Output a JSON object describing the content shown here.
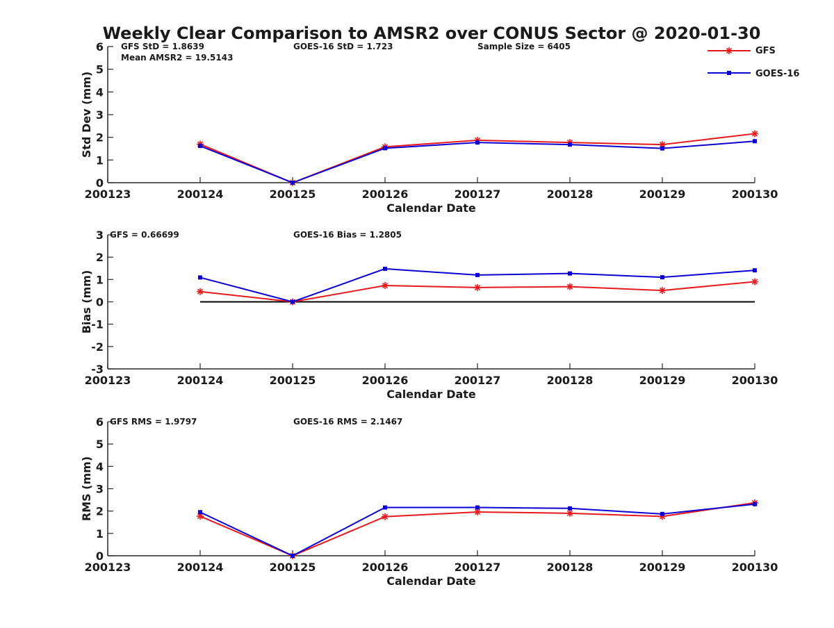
{
  "title": "Weekly Clear Comparison to AMSR2 over CONUS Sector @ 2020-01-30",
  "legend": [
    {
      "name": "GFS",
      "color": "#e8191c",
      "marker": "star"
    },
    {
      "name": "GOES-16",
      "color": "#0a00d6",
      "marker": "square"
    }
  ],
  "colors": {
    "gfs": "#e8191c",
    "goes": "#0a00d6",
    "axis": "#262626",
    "zero_line": "#000000"
  },
  "chart_data": [
    {
      "type": "line",
      "ylabel": "Std Dev (mm)",
      "xlabel": "Calendar Date",
      "xticks": [
        "200123",
        "200124",
        "200125",
        "200126",
        "200127",
        "200128",
        "200129",
        "200130"
      ],
      "yticks": [
        "0",
        "1",
        "2",
        "3",
        "4",
        "5",
        "6"
      ],
      "ylim": [
        0,
        6
      ],
      "x": [
        "200124",
        "200125",
        "200126",
        "200127",
        "200128",
        "200129",
        "200130"
      ],
      "series": [
        {
          "name": "GFS",
          "values": [
            1.7,
            0.0,
            1.58,
            1.87,
            1.77,
            1.68,
            2.16
          ]
        },
        {
          "name": "GOES-16",
          "values": [
            1.62,
            0.0,
            1.52,
            1.77,
            1.68,
            1.51,
            1.83
          ]
        }
      ],
      "annotations": [
        "GFS StD = 1.8639",
        "GOES-16 StD = 1.723",
        "Sample Size = 6405",
        "Mean AMSR2 = 19.5143"
      ],
      "zero_line": false,
      "legend": "top-right"
    },
    {
      "type": "line",
      "ylabel": "Bias (mm)",
      "xlabel": "Calendar Date",
      "xticks": [
        "200123",
        "200124",
        "200125",
        "200126",
        "200127",
        "200128",
        "200129",
        "200130"
      ],
      "yticks": [
        "-3",
        "-2",
        "-1",
        "0",
        "1",
        "2",
        "3"
      ],
      "ylim": [
        -3,
        3
      ],
      "x": [
        "200124",
        "200125",
        "200126",
        "200127",
        "200128",
        "200129",
        "200130"
      ],
      "series": [
        {
          "name": "GFS",
          "values": [
            0.46,
            0.0,
            0.73,
            0.64,
            0.68,
            0.51,
            0.9
          ]
        },
        {
          "name": "GOES-16",
          "values": [
            1.09,
            0.0,
            1.48,
            1.2,
            1.27,
            1.1,
            1.41
          ]
        }
      ],
      "annotations": [
        "GFS = 0.66699",
        "GOES-16 Bias  = 1.2805"
      ],
      "zero_line": true
    },
    {
      "type": "line",
      "ylabel": "RMS (mm)",
      "xlabel": "Calendar Date",
      "xticks": [
        "200123",
        "200124",
        "200125",
        "200126",
        "200127",
        "200128",
        "200129",
        "200130"
      ],
      "yticks": [
        "0",
        "1",
        "2",
        "3",
        "4",
        "5",
        "6"
      ],
      "ylim": [
        0,
        6
      ],
      "x": [
        "200124",
        "200125",
        "200126",
        "200127",
        "200128",
        "200129",
        "200130"
      ],
      "series": [
        {
          "name": "GFS",
          "values": [
            1.77,
            0.0,
            1.75,
            1.96,
            1.9,
            1.76,
            2.37
          ]
        },
        {
          "name": "GOES-16",
          "values": [
            1.95,
            0.0,
            2.16,
            2.16,
            2.12,
            1.87,
            2.31
          ]
        }
      ],
      "annotations": [
        "GFS RMS = 1.9797",
        "GOES-16 RMS = 2.1467"
      ],
      "zero_line": false
    }
  ]
}
